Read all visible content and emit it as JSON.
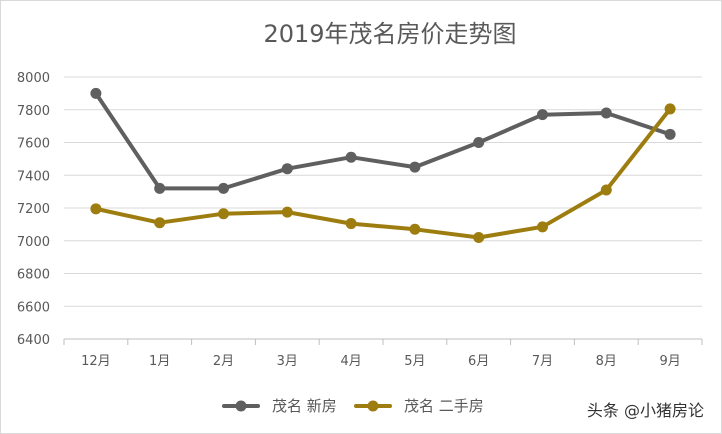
{
  "chart_data": {
    "type": "line",
    "title": "2019年茂名房价走势图",
    "xlabel": "",
    "ylabel": "",
    "categories": [
      "12月",
      "1月",
      "2月",
      "3月",
      "4月",
      "5月",
      "6月",
      "7月",
      "8月",
      "9月"
    ],
    "ylim": [
      6400,
      8000
    ],
    "yticks": [
      6400,
      6600,
      6800,
      7000,
      7200,
      7400,
      7600,
      7800,
      8000
    ],
    "grid": true,
    "legend_position": "bottom",
    "series": [
      {
        "name": "茂名 新房",
        "color": "#5f5f5f",
        "values": [
          7900,
          7320,
          7320,
          7440,
          7510,
          7450,
          7600,
          7770,
          7780,
          7650
        ]
      },
      {
        "name": "茂名 二手房",
        "color": "#9e7d10",
        "values": [
          7195,
          7110,
          7165,
          7175,
          7105,
          7070,
          7020,
          7085,
          7310,
          7805
        ]
      }
    ]
  },
  "watermark": {
    "text": "头条 @小猪房论"
  }
}
